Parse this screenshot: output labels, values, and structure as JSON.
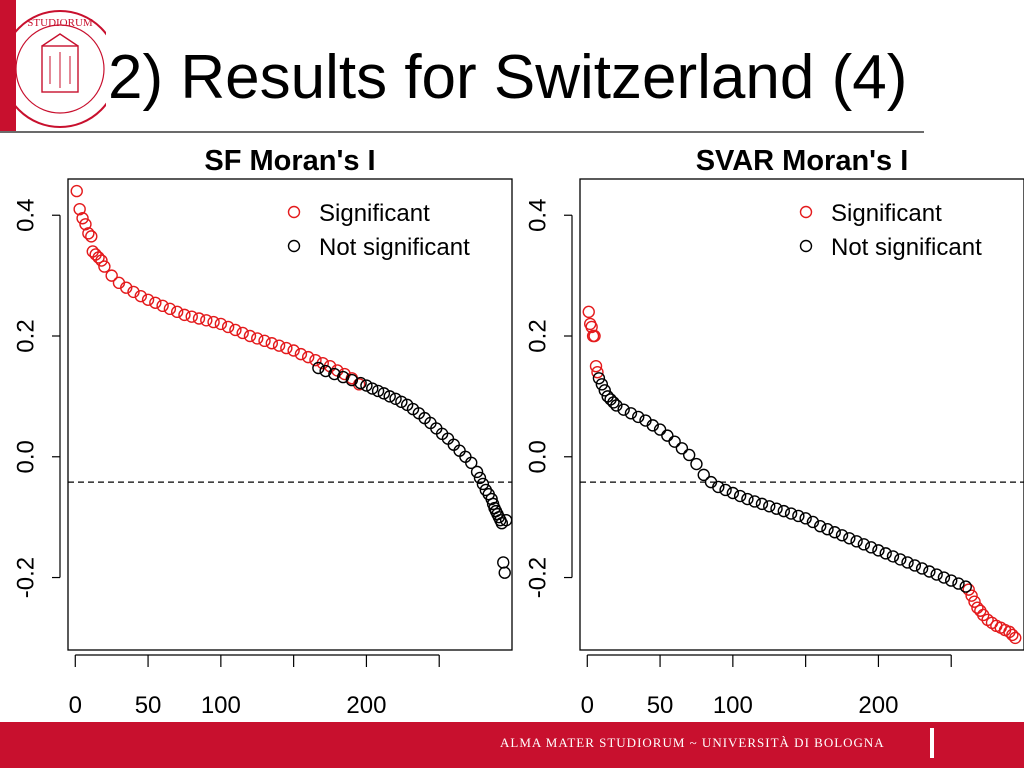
{
  "slide": {
    "title": "2) Results for Switzerland (4)",
    "footer": "ALMA MATER STUDIORUM ~ UNIVERSITÀ DI BOLOGNA",
    "logo": {
      "name": "university-seal",
      "text": "STUDIORUM · DI BOLOGNA",
      "color": "#c8102e"
    },
    "accent_color": "#c8102e"
  },
  "chart_data": [
    {
      "type": "scatter",
      "title": "SF Moran's I",
      "xlabel": "",
      "ylabel": "",
      "x_ticks": [
        0,
        50,
        100,
        200
      ],
      "x_ticks_unlabeled": [
        150,
        250
      ],
      "y_ticks": [
        "0.4",
        "0.2",
        "0.0",
        "-0.2"
      ],
      "y_tick_values": [
        0.4,
        0.2,
        0.0,
        -0.2
      ],
      "xlim": [
        -5,
        300
      ],
      "ylim": [
        -0.32,
        0.46
      ],
      "reference_line": -0.042,
      "legend": {
        "position": "top-right",
        "entries": [
          "Significant",
          "Not significant"
        ]
      },
      "colors": {
        "Significant": "#e41a1c",
        "Not significant": "#000000"
      },
      "grid": false,
      "series": [
        {
          "name": "Significant",
          "x": [
            1,
            3,
            5,
            7,
            9,
            11,
            12,
            14,
            16,
            18,
            20,
            25,
            30,
            35,
            40,
            45,
            50,
            55,
            60,
            65,
            70,
            75,
            80,
            85,
            90,
            95,
            100,
            105,
            110,
            115,
            120,
            125,
            130,
            135,
            140,
            145,
            150,
            155,
            160,
            165,
            170,
            175,
            180,
            185,
            190,
            195
          ],
          "y": [
            0.44,
            0.41,
            0.395,
            0.385,
            0.37,
            0.365,
            0.34,
            0.335,
            0.33,
            0.325,
            0.315,
            0.3,
            0.288,
            0.28,
            0.273,
            0.266,
            0.26,
            0.255,
            0.25,
            0.245,
            0.24,
            0.235,
            0.232,
            0.229,
            0.226,
            0.223,
            0.22,
            0.215,
            0.21,
            0.205,
            0.2,
            0.196,
            0.192,
            0.188,
            0.184,
            0.18,
            0.176,
            0.17,
            0.165,
            0.16,
            0.155,
            0.15,
            0.143,
            0.137,
            0.13,
            0.12
          ]
        },
        {
          "name": "Not significant",
          "x": [
            167,
            172,
            178,
            184,
            190,
            196,
            200,
            204,
            208,
            212,
            216,
            220,
            224,
            228,
            232,
            236,
            240,
            244,
            248,
            252,
            256,
            260,
            264,
            268,
            272,
            276,
            278,
            280,
            282,
            284,
            286,
            287,
            288,
            289,
            290,
            291,
            292,
            293,
            294,
            295,
            296
          ],
          "y": [
            0.147,
            0.142,
            0.137,
            0.132,
            0.127,
            0.122,
            0.118,
            0.113,
            0.109,
            0.105,
            0.1,
            0.096,
            0.091,
            0.086,
            0.079,
            0.072,
            0.064,
            0.056,
            0.047,
            0.038,
            0.03,
            0.02,
            0.01,
            0.0,
            -0.01,
            -0.025,
            -0.035,
            -0.045,
            -0.055,
            -0.062,
            -0.07,
            -0.078,
            -0.085,
            -0.09,
            -0.095,
            -0.1,
            -0.105,
            -0.11,
            -0.175,
            -0.192,
            -0.105
          ]
        }
      ]
    },
    {
      "type": "scatter",
      "title": "SVAR Moran's I",
      "xlabel": "",
      "ylabel": "",
      "x_ticks": [
        0,
        50,
        100,
        200
      ],
      "x_ticks_unlabeled": [
        150,
        250
      ],
      "y_ticks": [
        "0.4",
        "0.2",
        "0.0",
        "-0.2"
      ],
      "y_tick_values": [
        0.4,
        0.2,
        0.0,
        -0.2
      ],
      "xlim": [
        -5,
        300
      ],
      "ylim": [
        -0.32,
        0.46
      ],
      "reference_line": -0.042,
      "legend": {
        "position": "top-right",
        "entries": [
          "Significant",
          "Not significant"
        ]
      },
      "colors": {
        "Significant": "#e41a1c",
        "Not significant": "#000000"
      },
      "grid": false,
      "series": [
        {
          "name": "Significant",
          "x": [
            1,
            2,
            3,
            4,
            5,
            6,
            7,
            262,
            264,
            266,
            268,
            270,
            272,
            275,
            278,
            281,
            284,
            287,
            290,
            292,
            294
          ],
          "y": [
            0.24,
            0.22,
            0.215,
            0.2,
            0.2,
            0.15,
            0.14,
            -0.22,
            -0.23,
            -0.24,
            -0.25,
            -0.255,
            -0.262,
            -0.27,
            -0.275,
            -0.28,
            -0.283,
            -0.287,
            -0.29,
            -0.295,
            -0.3
          ]
        },
        {
          "name": "Not significant",
          "x": [
            8,
            10,
            12,
            14,
            16,
            18,
            20,
            25,
            30,
            35,
            40,
            45,
            50,
            55,
            60,
            65,
            70,
            75,
            80,
            85,
            90,
            95,
            100,
            105,
            110,
            115,
            120,
            125,
            130,
            135,
            140,
            145,
            150,
            155,
            160,
            165,
            170,
            175,
            180,
            185,
            190,
            195,
            200,
            205,
            210,
            215,
            220,
            225,
            230,
            235,
            240,
            245,
            250,
            255,
            260
          ],
          "y": [
            0.13,
            0.12,
            0.11,
            0.1,
            0.095,
            0.09,
            0.085,
            0.078,
            0.072,
            0.066,
            0.06,
            0.052,
            0.045,
            0.035,
            0.025,
            0.014,
            0.003,
            -0.012,
            -0.03,
            -0.042,
            -0.05,
            -0.055,
            -0.06,
            -0.065,
            -0.07,
            -0.074,
            -0.078,
            -0.082,
            -0.086,
            -0.09,
            -0.094,
            -0.098,
            -0.102,
            -0.108,
            -0.115,
            -0.12,
            -0.125,
            -0.13,
            -0.135,
            -0.14,
            -0.145,
            -0.15,
            -0.155,
            -0.16,
            -0.165,
            -0.17,
            -0.175,
            -0.18,
            -0.185,
            -0.19,
            -0.195,
            -0.2,
            -0.205,
            -0.21,
            -0.215
          ]
        }
      ]
    }
  ]
}
